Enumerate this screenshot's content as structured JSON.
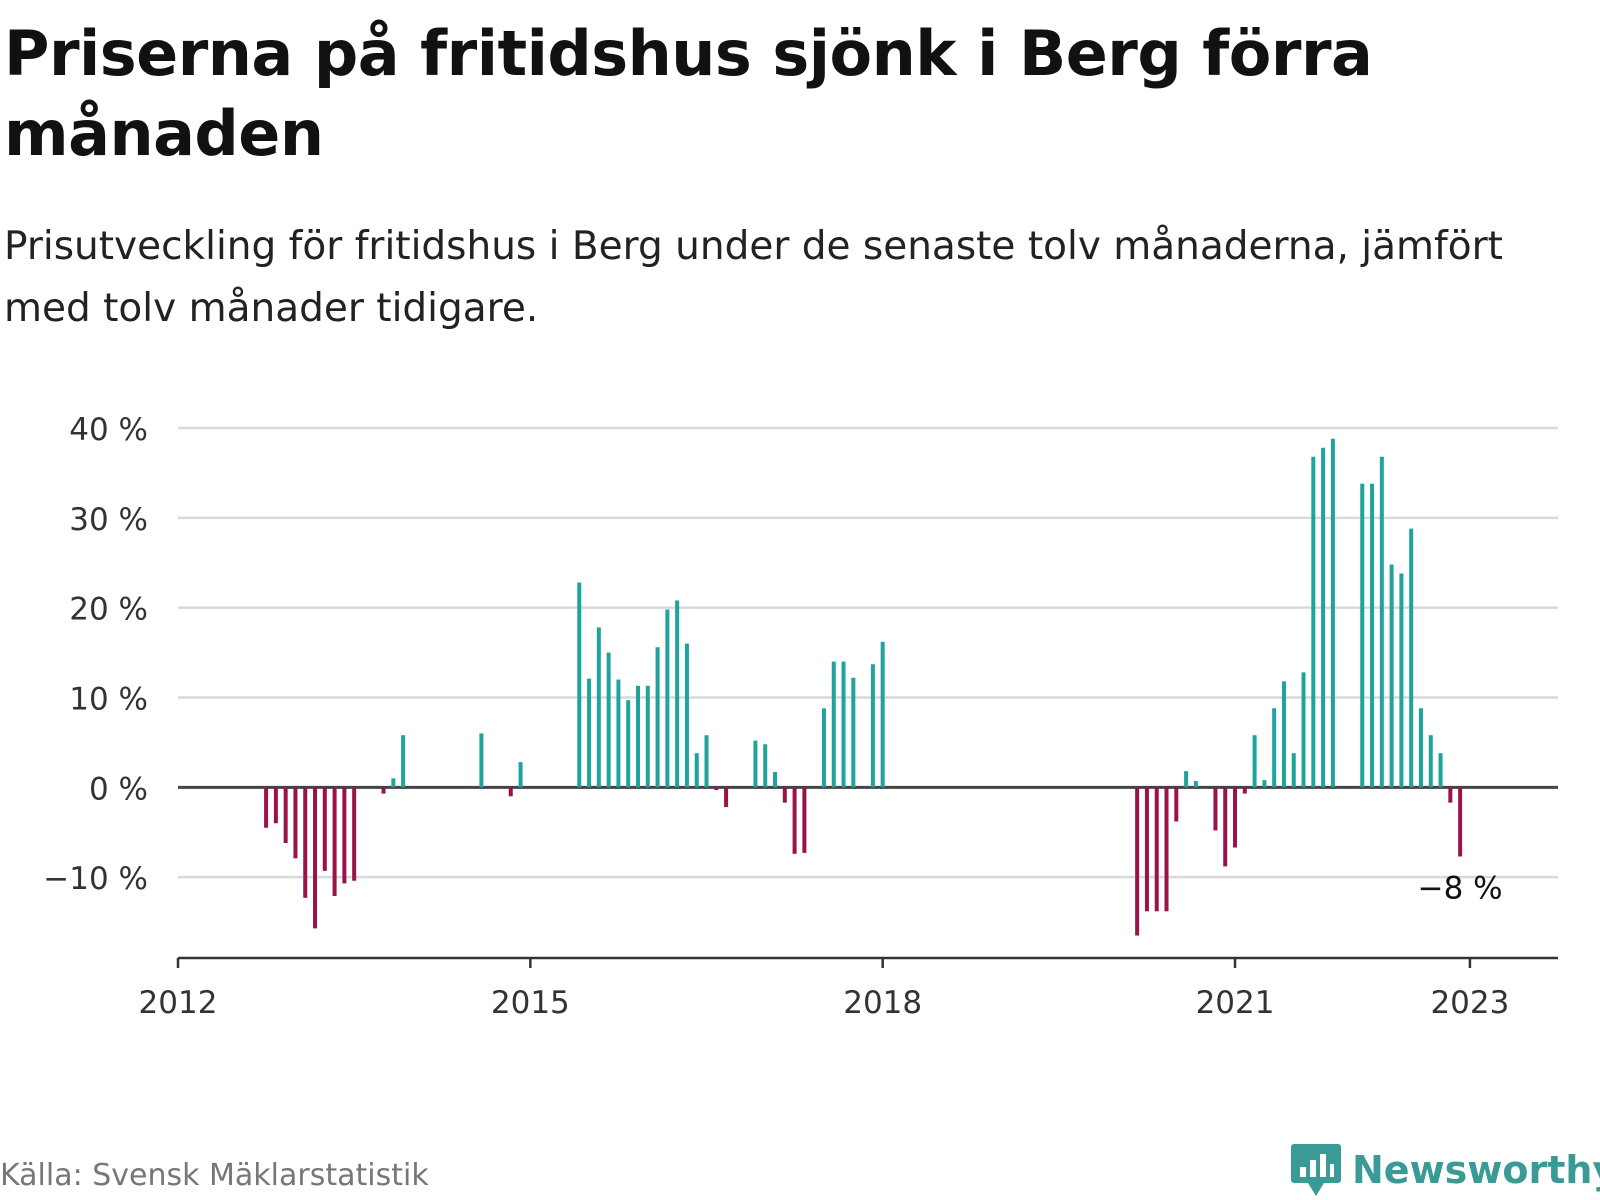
{
  "header": {
    "title": "Priserna på fritidshus sjönk i Berg förra månaden",
    "subtitle": "Prisutveckling för fritidshus i Berg under de senaste tolv månaderna, jämfört med tolv månader tidigare."
  },
  "footer": {
    "source": "Källa: Svensk Mäklarstatistik",
    "brand": "Newsworthy"
  },
  "colors": {
    "positive": "#1fa39d",
    "negative": "#99134a",
    "brand": "#3a9a96"
  },
  "icons": {
    "brand_logo": "bar-chart-bubble-icon"
  },
  "chart_data": {
    "type": "bar",
    "title": "",
    "xlabel": "",
    "ylabel": "",
    "ylim": [
      -19,
      40
    ],
    "xlim": [
      "2012-01",
      "2023-10"
    ],
    "grid": true,
    "y_ticks": [
      "−10 %",
      "0 %",
      "10 %",
      "20 %",
      "30 %",
      "40 %"
    ],
    "y_tick_values": [
      -10,
      0,
      10,
      20,
      30,
      40
    ],
    "x_ticks": [
      "2012",
      "2015",
      "2018",
      "2021",
      "2023"
    ],
    "x_tick_values": [
      "2012-01",
      "2015-01",
      "2018-01",
      "2021-01",
      "2023-01"
    ],
    "last_value_label": "−8 %",
    "series": [
      {
        "values": [
          {
            "x": "2012-10",
            "y": -4.5
          },
          {
            "x": "2012-11",
            "y": -4.0
          },
          {
            "x": "2012-12",
            "y": -6.2
          },
          {
            "x": "2013-01",
            "y": -7.9
          },
          {
            "x": "2013-02",
            "y": -12.3
          },
          {
            "x": "2013-03",
            "y": -15.7
          },
          {
            "x": "2013-04",
            "y": -9.3
          },
          {
            "x": "2013-05",
            "y": -12.1
          },
          {
            "x": "2013-06",
            "y": -10.7
          },
          {
            "x": "2013-07",
            "y": -10.4
          },
          {
            "x": "2013-10",
            "y": -0.7
          },
          {
            "x": "2013-11",
            "y": 1.0
          },
          {
            "x": "2013-12",
            "y": 5.8
          },
          {
            "x": "2014-08",
            "y": 6.0
          },
          {
            "x": "2014-11",
            "y": -1.0
          },
          {
            "x": "2014-12",
            "y": 2.8
          },
          {
            "x": "2015-06",
            "y": 22.8
          },
          {
            "x": "2015-07",
            "y": 12.1
          },
          {
            "x": "2015-08",
            "y": 17.8
          },
          {
            "x": "2015-09",
            "y": 15.0
          },
          {
            "x": "2015-10",
            "y": 12.0
          },
          {
            "x": "2015-11",
            "y": 9.7
          },
          {
            "x": "2015-12",
            "y": 11.3
          },
          {
            "x": "2016-01",
            "y": 11.3
          },
          {
            "x": "2016-02",
            "y": 15.6
          },
          {
            "x": "2016-03",
            "y": 19.8
          },
          {
            "x": "2016-04",
            "y": 20.8
          },
          {
            "x": "2016-05",
            "y": 16.0
          },
          {
            "x": "2016-06",
            "y": 3.8
          },
          {
            "x": "2016-07",
            "y": 5.8
          },
          {
            "x": "2016-08",
            "y": -0.3
          },
          {
            "x": "2016-09",
            "y": -2.2
          },
          {
            "x": "2016-12",
            "y": 5.2
          },
          {
            "x": "2017-01",
            "y": 4.8
          },
          {
            "x": "2017-02",
            "y": 1.7
          },
          {
            "x": "2017-03",
            "y": -1.7
          },
          {
            "x": "2017-04",
            "y": -7.4
          },
          {
            "x": "2017-05",
            "y": -7.3
          },
          {
            "x": "2017-07",
            "y": 8.8
          },
          {
            "x": "2017-08",
            "y": 14.0
          },
          {
            "x": "2017-09",
            "y": 14.0
          },
          {
            "x": "2017-10",
            "y": 12.2
          },
          {
            "x": "2017-12",
            "y": 13.7
          },
          {
            "x": "2018-01",
            "y": 16.2
          },
          {
            "x": "2020-03",
            "y": -16.5
          },
          {
            "x": "2020-04",
            "y": -13.8
          },
          {
            "x": "2020-05",
            "y": -13.8
          },
          {
            "x": "2020-06",
            "y": -13.8
          },
          {
            "x": "2020-07",
            "y": -3.8
          },
          {
            "x": "2020-08",
            "y": 1.8
          },
          {
            "x": "2020-09",
            "y": 0.7
          },
          {
            "x": "2020-11",
            "y": -4.8
          },
          {
            "x": "2020-12",
            "y": -8.8
          },
          {
            "x": "2021-01",
            "y": -6.7
          },
          {
            "x": "2021-02",
            "y": -0.7
          },
          {
            "x": "2021-03",
            "y": 5.8
          },
          {
            "x": "2021-04",
            "y": 0.8
          },
          {
            "x": "2021-05",
            "y": 8.8
          },
          {
            "x": "2021-06",
            "y": 11.8
          },
          {
            "x": "2021-07",
            "y": 3.8
          },
          {
            "x": "2021-08",
            "y": 12.8
          },
          {
            "x": "2021-09",
            "y": 36.8
          },
          {
            "x": "2021-10",
            "y": 37.8
          },
          {
            "x": "2021-11",
            "y": 38.8
          },
          {
            "x": "2022-02",
            "y": 33.8
          },
          {
            "x": "2022-03",
            "y": 33.8
          },
          {
            "x": "2022-04",
            "y": 36.8
          },
          {
            "x": "2022-05",
            "y": 24.8
          },
          {
            "x": "2022-06",
            "y": 23.8
          },
          {
            "x": "2022-07",
            "y": 28.8
          },
          {
            "x": "2022-08",
            "y": 8.8
          },
          {
            "x": "2022-09",
            "y": 5.8
          },
          {
            "x": "2022-10",
            "y": 3.8
          },
          {
            "x": "2022-11",
            "y": -1.7
          },
          {
            "x": "2022-12",
            "y": -7.7
          }
        ]
      }
    ]
  }
}
